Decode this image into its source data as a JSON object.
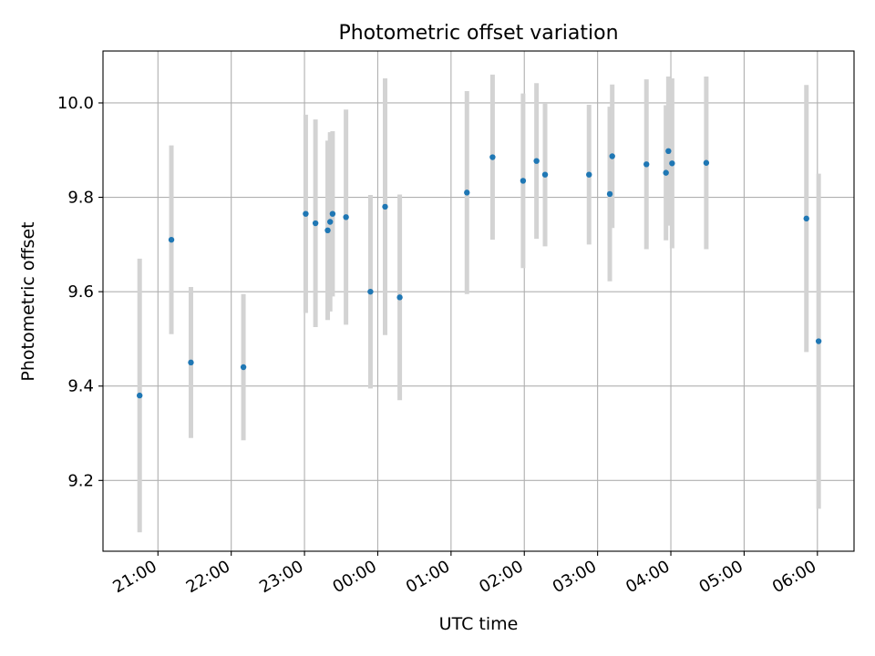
{
  "chart_data": {
    "type": "scatter",
    "title": "Photometric offset variation",
    "xlabel": "UTC time",
    "ylabel": "Photometric offset",
    "x_ticks": [
      "21:00",
      "22:00",
      "23:00",
      "00:00",
      "01:00",
      "02:00",
      "03:00",
      "04:00",
      "05:00",
      "06:00"
    ],
    "y_ticks": [
      "9.2",
      "9.4",
      "9.6",
      "9.8",
      "10.0"
    ],
    "xlim": [
      "20:15",
      "06:30"
    ],
    "ylim": [
      9.05,
      10.11
    ],
    "grid": true,
    "colors": {
      "points": "#1f77b4",
      "errorbars": "#d3d3d3"
    },
    "points": [
      {
        "x": "20:45",
        "y": 9.38,
        "err": 0.29
      },
      {
        "x": "21:11",
        "y": 9.71,
        "err": 0.2
      },
      {
        "x": "21:27",
        "y": 9.45,
        "err": 0.16
      },
      {
        "x": "22:10",
        "y": 9.44,
        "err": 0.155
      },
      {
        "x": "23:01",
        "y": 9.765,
        "err": 0.21
      },
      {
        "x": "23:09",
        "y": 9.745,
        "err": 0.22
      },
      {
        "x": "23:19",
        "y": 9.73,
        "err": 0.19
      },
      {
        "x": "23:21",
        "y": 9.748,
        "err": 0.19
      },
      {
        "x": "23:23",
        "y": 9.765,
        "err": 0.175
      },
      {
        "x": "23:34",
        "y": 9.758,
        "err": 0.228
      },
      {
        "x": "23:54",
        "y": 9.6,
        "err": 0.205
      },
      {
        "x": "00:06",
        "y": 9.78,
        "err": 0.272
      },
      {
        "x": "00:18",
        "y": 9.588,
        "err": 0.218
      },
      {
        "x": "01:13",
        "y": 9.81,
        "err": 0.215
      },
      {
        "x": "01:34",
        "y": 9.885,
        "err": 0.175
      },
      {
        "x": "01:59",
        "y": 9.835,
        "err": 0.185
      },
      {
        "x": "02:10",
        "y": 9.877,
        "err": 0.165
      },
      {
        "x": "02:17",
        "y": 9.848,
        "err": 0.152
      },
      {
        "x": "02:53",
        "y": 9.848,
        "err": 0.148
      },
      {
        "x": "03:10",
        "y": 9.807,
        "err": 0.185
      },
      {
        "x": "03:12",
        "y": 9.887,
        "err": 0.152
      },
      {
        "x": "03:40",
        "y": 9.87,
        "err": 0.18
      },
      {
        "x": "03:56",
        "y": 9.852,
        "err": 0.143
      },
      {
        "x": "03:58",
        "y": 9.898,
        "err": 0.158
      },
      {
        "x": "04:01",
        "y": 9.872,
        "err": 0.18
      },
      {
        "x": "04:29",
        "y": 9.873,
        "err": 0.183
      },
      {
        "x": "05:51",
        "y": 9.755,
        "err": 0.283
      },
      {
        "x": "06:01",
        "y": 9.495,
        "err": 0.355
      }
    ]
  }
}
